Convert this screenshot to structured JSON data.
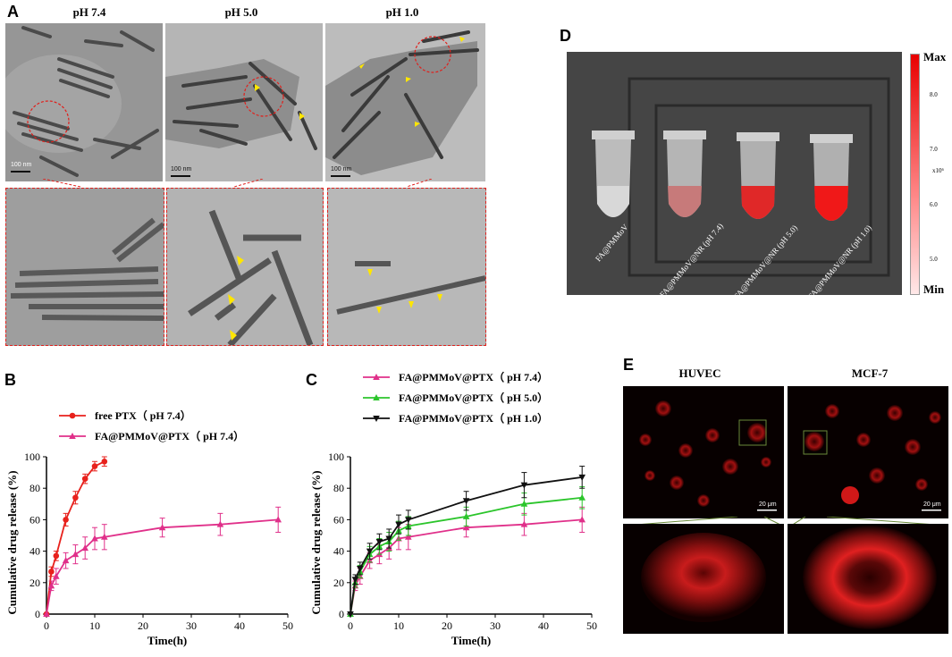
{
  "panelA": {
    "letter": "A",
    "headers": [
      "pH 7.4",
      "pH 5.0",
      "pH 1.0"
    ],
    "scale_labels": [
      "100 nm",
      "100 nm",
      "100 nm"
    ]
  },
  "panelB": {
    "letter": "B",
    "legend": [
      "free PTX（ pH 7.4）",
      "FA@PMMoV@PTX（ pH 7.4）"
    ]
  },
  "panelC": {
    "letter": "C",
    "legend": [
      "FA@PMMoV@PTX（ pH 7.4）",
      "FA@PMMoV@PTX（ pH 5.0）",
      "FA@PMMoV@PTX（ pH 1.0）"
    ]
  },
  "panelD": {
    "letter": "D",
    "tube_labels": [
      "FA@PMMoV",
      "FA@PMMoV@NR (pH 7.4)",
      "FA@PMMoV@NR (pH 5.0)",
      "FA@PMMoV@NR (pH 1.0)"
    ],
    "colorbar": {
      "max_label": "Max",
      "min_label": "Min",
      "ticks": [
        "8.0",
        "7.0",
        "6.0",
        "5.0"
      ],
      "unit": "x10⁶"
    }
  },
  "panelE": {
    "letter": "E",
    "headers": [
      "HUVEC",
      "MCF-7"
    ],
    "scale_labels": [
      "20 μm",
      "20 μm"
    ]
  },
  "chart_data": [
    {
      "type": "line",
      "panel": "B",
      "xlabel": "Time(h)",
      "ylabel": "Cumulative drug release (%)",
      "xlim": [
        0,
        50
      ],
      "ylim": [
        0,
        100
      ],
      "xticks": [
        0,
        10,
        20,
        30,
        40,
        50
      ],
      "yticks": [
        0,
        20,
        40,
        60,
        80,
        100
      ],
      "colors": [
        "#e8211c",
        "#e0308a"
      ],
      "series": [
        {
          "name": "free PTX（ pH 7.4）",
          "marker": "circle",
          "x": [
            0,
            1,
            2,
            4,
            6,
            8,
            10,
            12
          ],
          "y": [
            0,
            27,
            37,
            60,
            74,
            86,
            94,
            97
          ],
          "err": [
            0,
            3,
            3,
            4,
            4,
            3,
            3,
            3
          ]
        },
        {
          "name": "FA@PMMoV@PTX（ pH 7.4）",
          "marker": "triangle",
          "x": [
            0,
            1,
            2,
            4,
            6,
            8,
            10,
            12,
            24,
            36,
            48
          ],
          "y": [
            0,
            18,
            24,
            34,
            38,
            42,
            48,
            49,
            55,
            57,
            60
          ],
          "err": [
            0,
            3,
            5,
            5,
            6,
            7,
            7,
            8,
            6,
            7,
            8
          ]
        }
      ]
    },
    {
      "type": "line",
      "panel": "C",
      "xlabel": "Time(h)",
      "ylabel": "Cumulative drug release (%)",
      "xlim": [
        0,
        50
      ],
      "ylim": [
        0,
        100
      ],
      "xticks": [
        0,
        10,
        20,
        30,
        40,
        50
      ],
      "yticks": [
        0,
        20,
        40,
        60,
        80,
        100
      ],
      "colors": [
        "#e0308a",
        "#2bc52b",
        "#111111"
      ],
      "series": [
        {
          "name": "FA@PMMoV@PTX（ pH 7.4）",
          "marker": "triangle",
          "x": [
            0,
            1,
            2,
            4,
            6,
            8,
            10,
            12,
            24,
            36,
            48
          ],
          "y": [
            0,
            18,
            24,
            34,
            38,
            42,
            48,
            49,
            55,
            57,
            60
          ],
          "err": [
            0,
            3,
            5,
            5,
            6,
            7,
            7,
            8,
            6,
            7,
            8
          ]
        },
        {
          "name": "FA@PMMoV@PTX（ pH 5.0）",
          "marker": "triangle",
          "x": [
            0,
            1,
            2,
            4,
            6,
            8,
            10,
            12,
            24,
            36,
            48
          ],
          "y": [
            0,
            20,
            27,
            38,
            43,
            46,
            53,
            56,
            62,
            70,
            74
          ],
          "err": [
            0,
            3,
            4,
            5,
            5,
            6,
            6,
            6,
            6,
            7,
            7
          ]
        },
        {
          "name": "FA@PMMoV@PTX（ pH 1.0）",
          "marker": "triangle-down",
          "x": [
            0,
            1,
            2,
            4,
            6,
            8,
            10,
            12,
            24,
            36,
            48
          ],
          "y": [
            0,
            22,
            29,
            40,
            46,
            48,
            57,
            60,
            72,
            82,
            87
          ],
          "err": [
            0,
            3,
            4,
            5,
            5,
            6,
            6,
            6,
            6,
            8,
            7
          ]
        }
      ]
    }
  ]
}
